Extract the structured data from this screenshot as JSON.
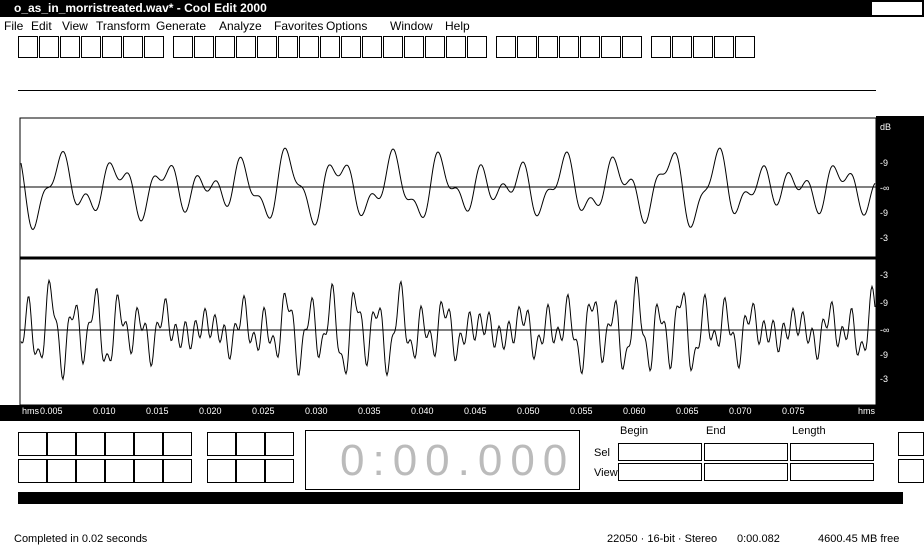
{
  "window": {
    "title": "o_as_in_morristreated.wav* - Cool Edit 2000"
  },
  "menu": [
    "File",
    "Edit",
    "View",
    "Transform",
    "Generate",
    "Analyze",
    "Favorites",
    "Options",
    "Window",
    "Help"
  ],
  "ruler": {
    "start": "hms",
    "labels": [
      "0.005",
      "0.010",
      "0.015",
      "0.020",
      "0.025",
      "0.030",
      "0.035",
      "0.040",
      "0.045",
      "0.050",
      "0.055",
      "0.060",
      "0.065",
      "0.070",
      "0.075"
    ],
    "end": "hms"
  },
  "scale": {
    "top": [
      "dB",
      "-9",
      "-∞",
      "-9",
      "-3"
    ],
    "bottom": [
      "-3",
      "-9",
      "-∞",
      "-9",
      "-3"
    ]
  },
  "time_display": "0:00.000",
  "selection": {
    "columns": [
      "Begin",
      "End",
      "Length"
    ],
    "rows": [
      "Sel",
      "View"
    ]
  },
  "status": {
    "message": "Completed in 0.02 seconds",
    "format": "22050 · 16-bit · Stereo",
    "duration": "0:00.082",
    "free": "4600.45 MB free"
  }
}
